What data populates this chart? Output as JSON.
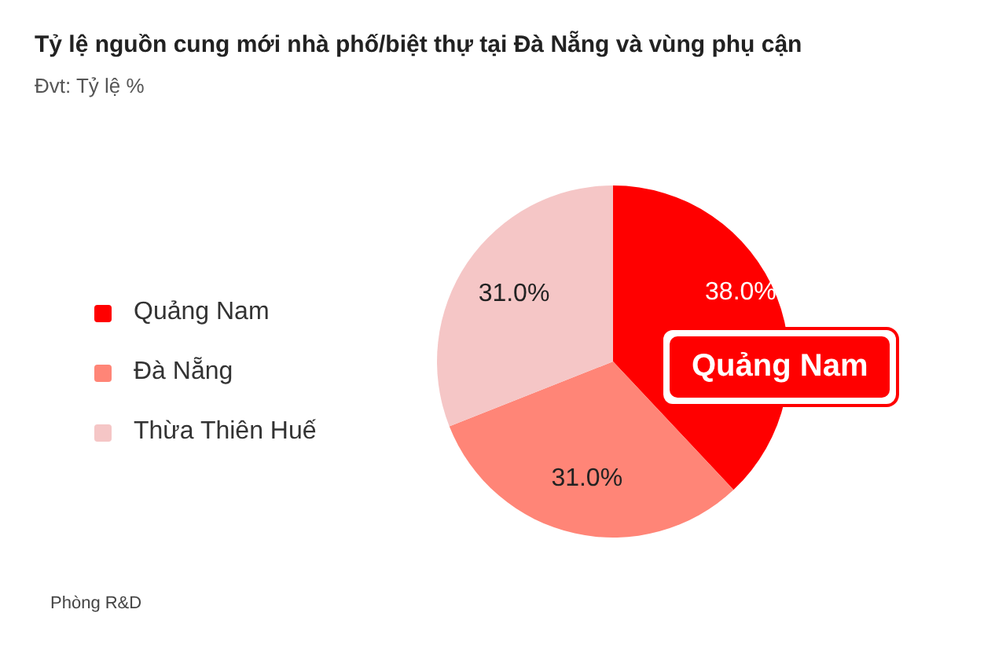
{
  "chart_data": {
    "type": "pie",
    "title": "Tỷ lệ nguồn cung mới nhà phố/biệt thự tại Đà Nẵng và vùng phụ cận",
    "subtitle": "Đvt: Tỷ lệ %",
    "categories": [
      "Quảng Nam",
      "Đà Nẵng",
      "Thừa Thiên Huế"
    ],
    "values": [
      38.0,
      31.0,
      31.0
    ],
    "colors": [
      "#ff0000",
      "#ff8577",
      "#f5c6c6"
    ],
    "value_labels": [
      "38.0%",
      "31.0%",
      "31.0%"
    ],
    "legend": "left",
    "annotations": [
      "Quảng Nam",
      "Phòng R&D"
    ]
  }
}
